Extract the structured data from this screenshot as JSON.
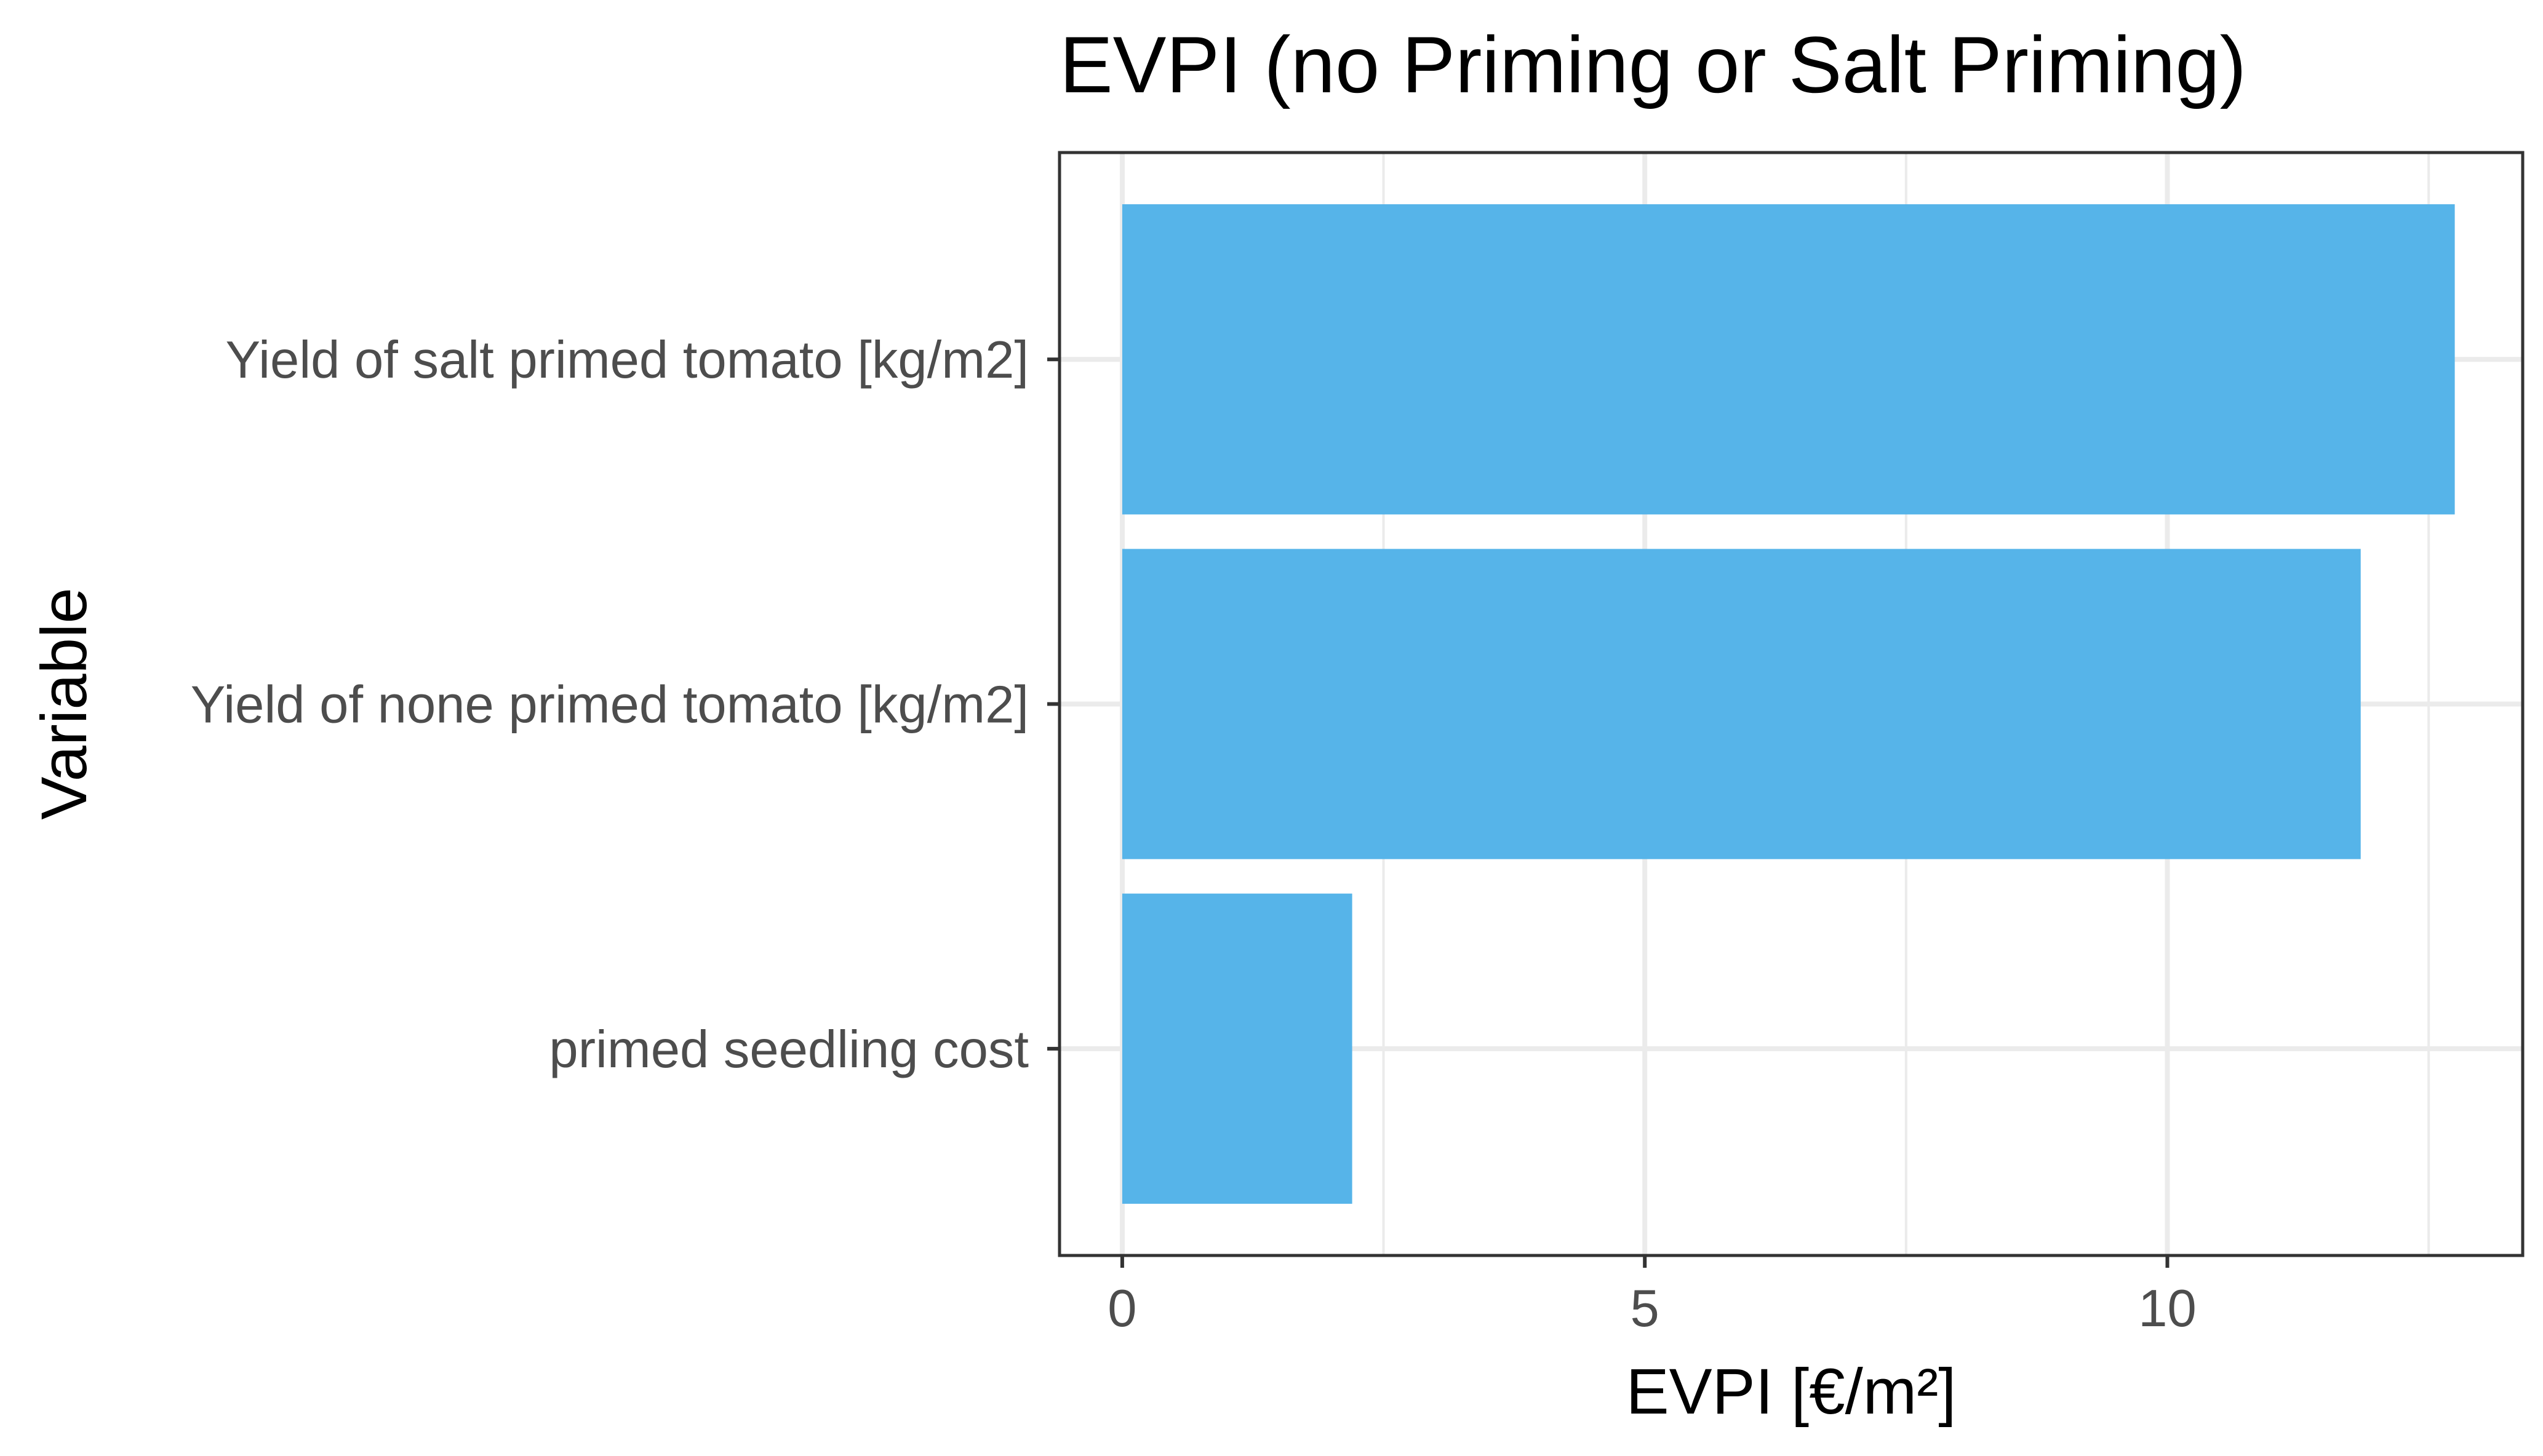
{
  "chart_data": {
    "type": "bar",
    "orientation": "horizontal",
    "title": "EVPI (no Priming or Salt Priming)",
    "xlabel": "EVPI [€/m²]",
    "ylabel": "Variable",
    "categories": [
      "Yield of salt primed tomato [kg/m2]",
      "Yield of none primed tomato [kg/m2]",
      "primed seedling cost"
    ],
    "values": [
      12.75,
      11.85,
      2.2
    ],
    "xlim": [
      -0.6,
      13.4
    ],
    "xticks": [
      0,
      5,
      10
    ],
    "xtick_labels": [
      "0",
      "5",
      "10"
    ],
    "grid": true,
    "legend": "none",
    "bar_color": "#56B4E9",
    "grid_color": "#ebebeb",
    "panel_border_color": "#333333"
  }
}
